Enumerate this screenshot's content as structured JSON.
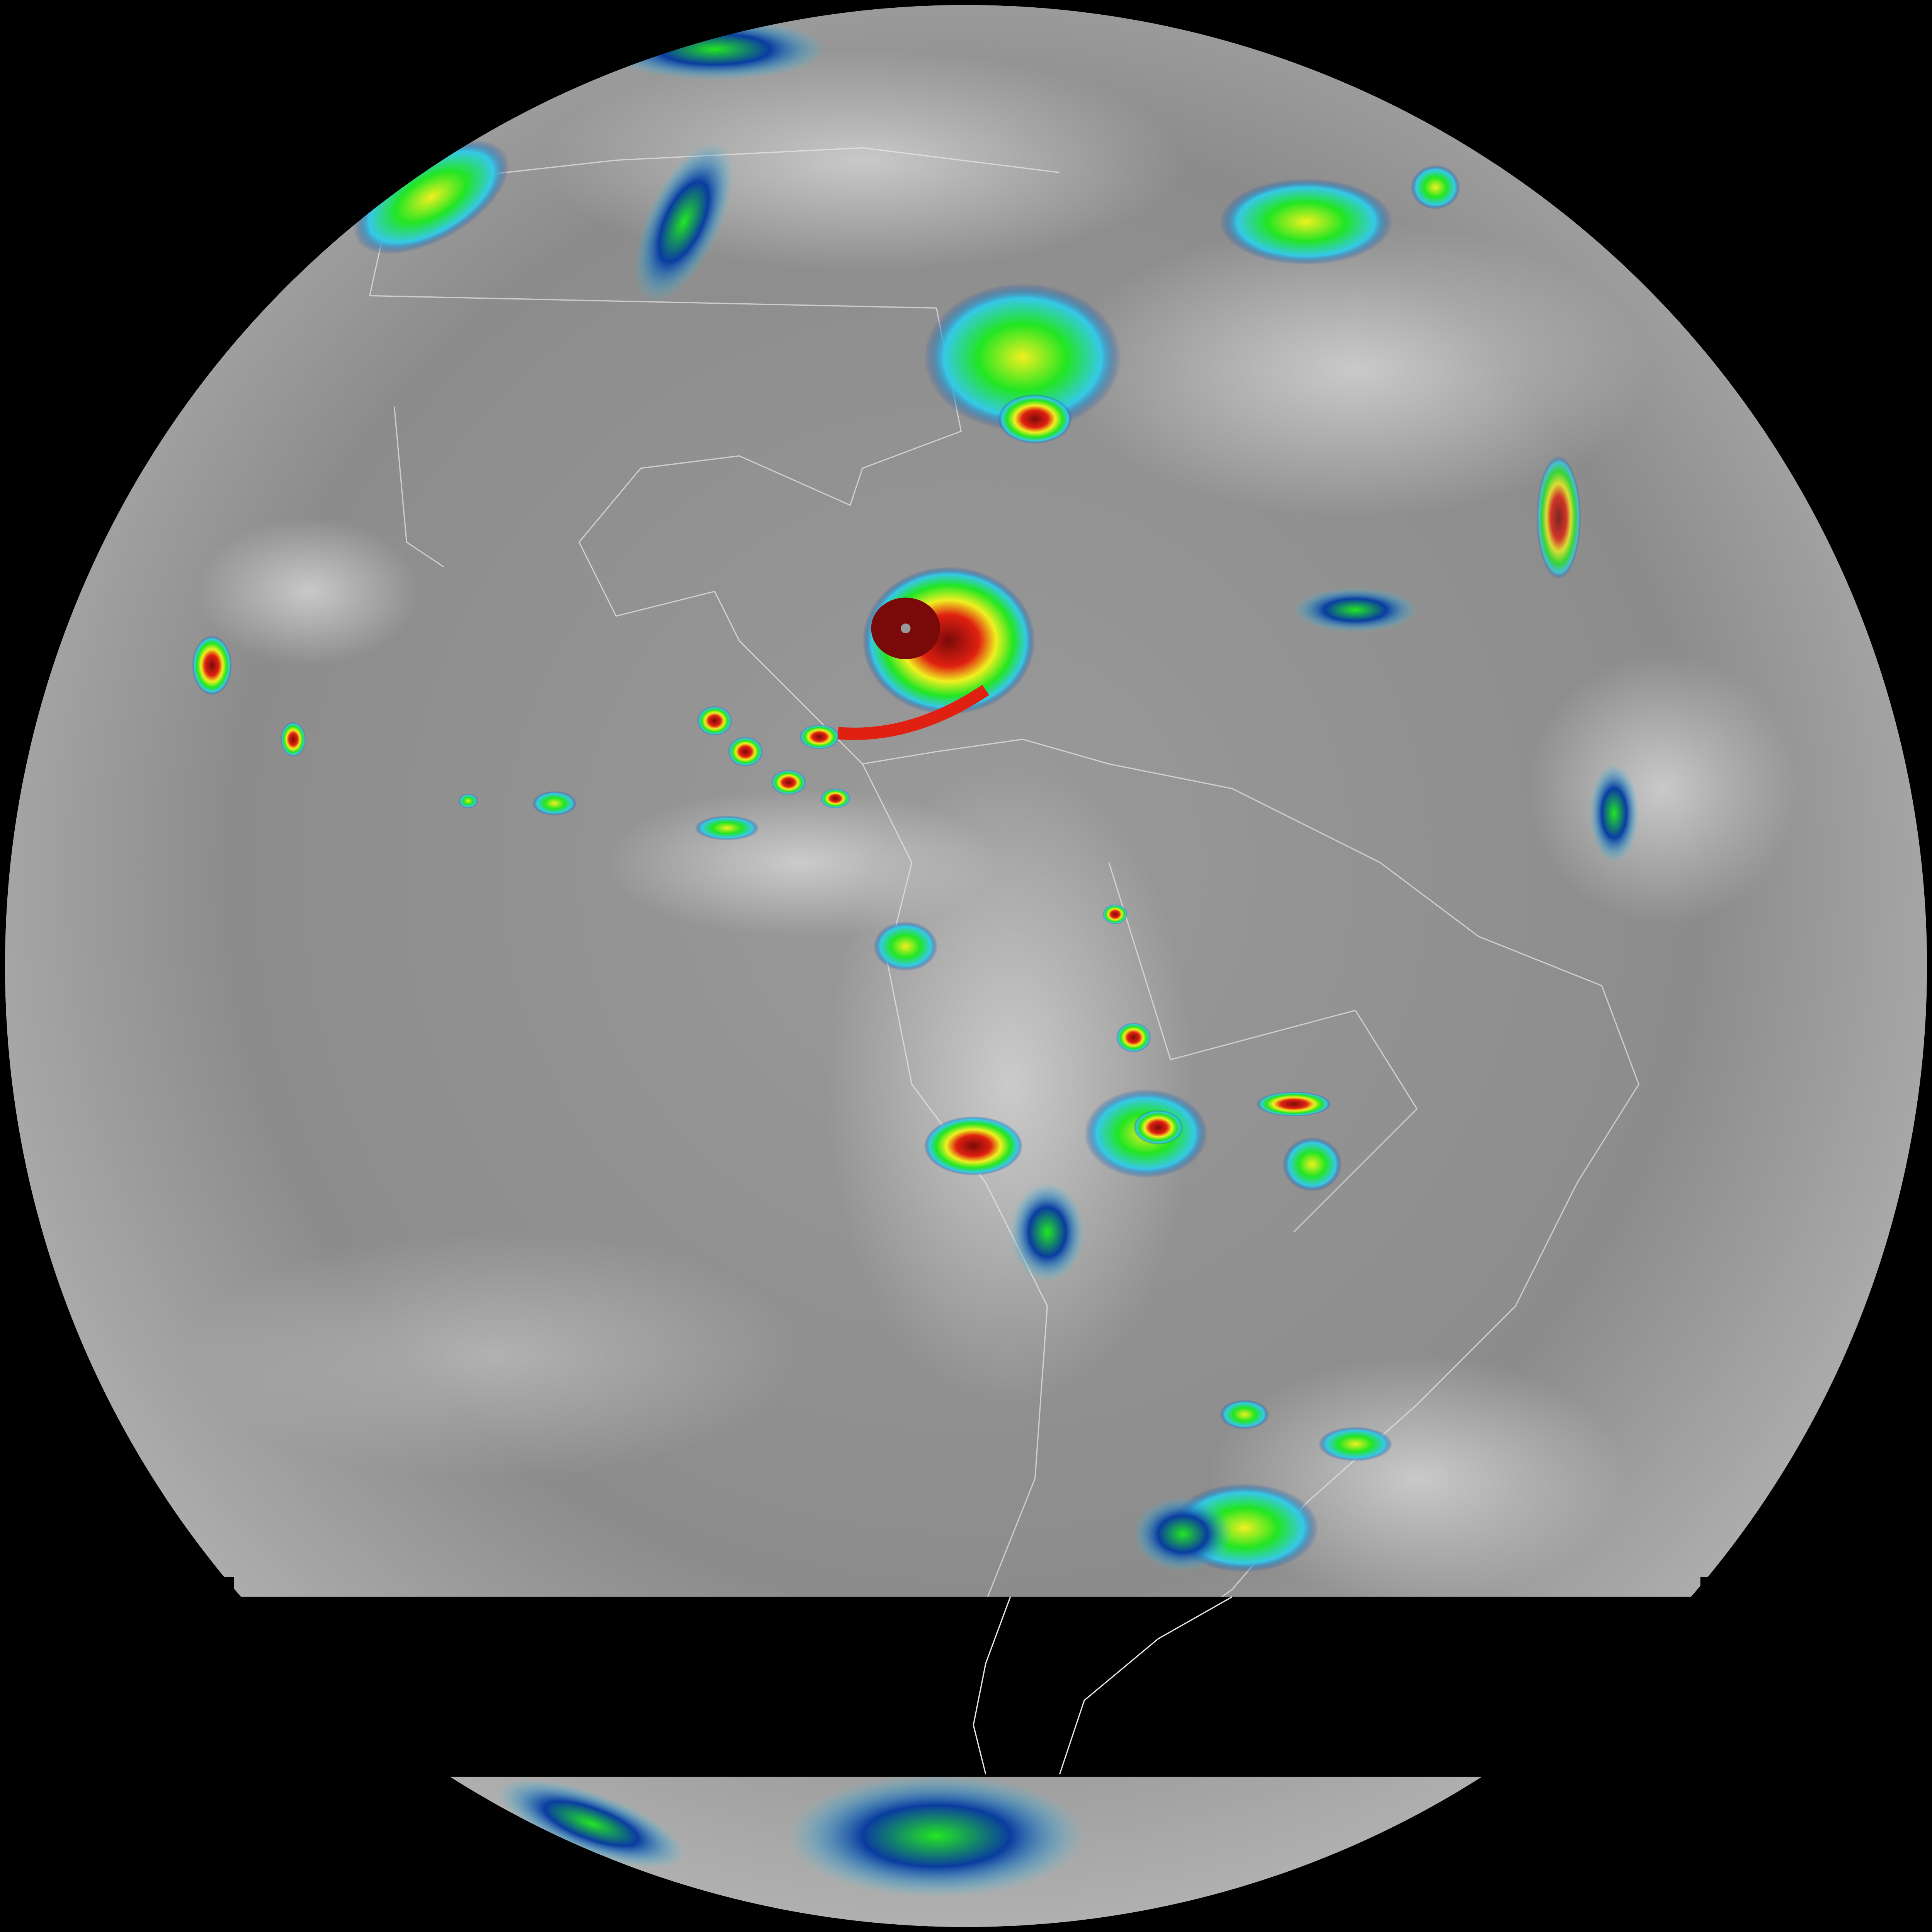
{
  "image": {
    "kind": "full-disk infrared satellite image",
    "background_color": "#000000",
    "colors": {
      "disk_light": "#b4b4b4",
      "disk_dark": "#6e6e6e",
      "cloud_cold": "#d8d8d8",
      "blue": "#0a3ca0",
      "cyan": "#36c8e8",
      "green": "#22e622",
      "yellow": "#f0f020",
      "red": "#e02010",
      "dark_red": "#7a0a0a",
      "borders": "#e8e8e8"
    },
    "features": [
      "hurricane-caribbean",
      "storm-north-atlantic",
      "convection-amazon",
      "convection-itcz",
      "storm-south-ocean",
      "missing-scan-band"
    ]
  }
}
